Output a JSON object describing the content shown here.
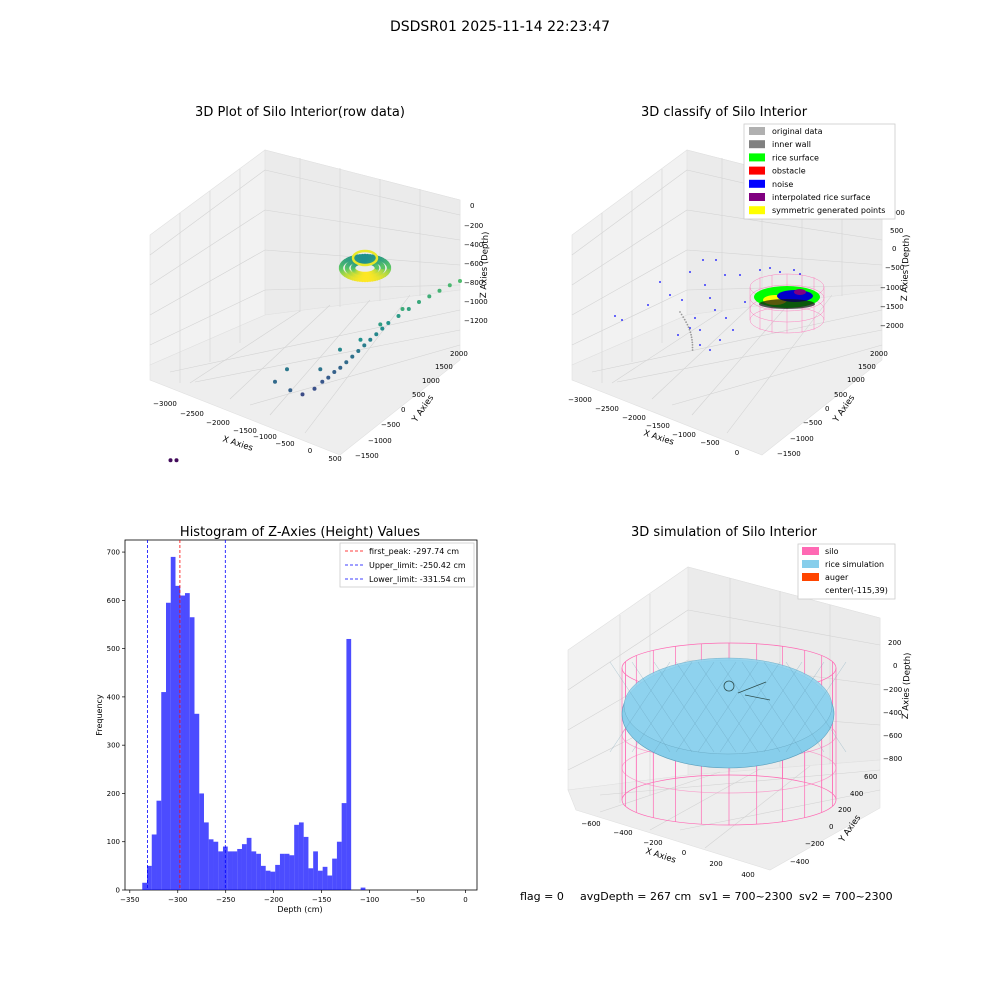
{
  "figure": {
    "suptitle": "DSDSR01 2025-11-14 22:23:47",
    "footer": {
      "flag": "flag = 0",
      "avg_depth": "avgDepth = 267 cm",
      "sv1": "sv1 = 700~2300",
      "sv2": "sv2 = 700~2300"
    }
  },
  "chart_data": [
    {
      "type": "scatter",
      "title": "3D Plot of Silo Interior(row data)",
      "xlabel": "X Axies",
      "ylabel": "Y Axies",
      "zlabel": "Z Axies (Depth)",
      "x_ticks": [
        "−3000",
        "−2500",
        "−2000",
        "−1500",
        "−1000",
        "−500",
        "0",
        "500"
      ],
      "y_ticks": [
        "−1500",
        "−1000",
        "−500",
        "0",
        "500",
        "1000",
        "1500",
        "2000"
      ],
      "z_ticks": [
        "0",
        "−200",
        "−400",
        "−600",
        "−800",
        "−1000",
        "−1200"
      ],
      "colormap": "viridis",
      "points": [
        {
          "x": -3000,
          "y": -1400,
          "z": -1450
        },
        {
          "x": -2950,
          "y": -1350,
          "z": -1460
        },
        {
          "x": -1900,
          "y": -300,
          "z": -1200
        },
        {
          "x": -1800,
          "y": -200,
          "z": -1180
        },
        {
          "x": -1750,
          "y": -100,
          "z": -1150
        },
        {
          "x": -1700,
          "y": -50,
          "z": -1130
        },
        {
          "x": -1650,
          "y": 0,
          "z": -1100
        },
        {
          "x": -1600,
          "y": 50,
          "z": -1080
        },
        {
          "x": -1550,
          "y": 100,
          "z": -1050
        },
        {
          "x": -1500,
          "y": 150,
          "z": -1020
        },
        {
          "x": -1450,
          "y": 200,
          "z": -990
        },
        {
          "x": -1400,
          "y": 250,
          "z": -960
        },
        {
          "x": -1350,
          "y": 300,
          "z": -930
        },
        {
          "x": -1300,
          "y": 350,
          "z": -900
        },
        {
          "x": -1250,
          "y": 400,
          "z": -870
        },
        {
          "x": -1200,
          "y": 450,
          "z": -840
        },
        {
          "x": -1100,
          "y": 500,
          "z": -800
        },
        {
          "x": -1000,
          "y": 550,
          "z": -760
        },
        {
          "x": -900,
          "y": 600,
          "z": -720
        },
        {
          "x": -800,
          "y": 650,
          "z": -690
        },
        {
          "x": -700,
          "y": 700,
          "z": -660
        },
        {
          "x": -600,
          "y": 750,
          "z": -630
        },
        {
          "x": -500,
          "y": 800,
          "z": -610
        },
        {
          "x": -2100,
          "y": -600,
          "z": -1050
        },
        {
          "x": -2000,
          "y": -500,
          "z": -980
        },
        {
          "x": -1900,
          "y": -650,
          "z": -1100
        },
        {
          "x": -1650,
          "y": -400,
          "z": -1000
        },
        {
          "x": -1500,
          "y": -200,
          "z": -900
        },
        {
          "x": -1300,
          "y": -100,
          "z": -850
        },
        {
          "x": -1150,
          "y": 100,
          "z": -780
        },
        {
          "x": -950,
          "y": 250,
          "z": -700
        }
      ],
      "surface_cluster": {
        "x_center": -115,
        "y_center": 39,
        "z": -267,
        "radius": 500
      }
    },
    {
      "type": "scatter",
      "title": "3D classify of Silo Interior",
      "xlabel": "X Axies",
      "ylabel": "Y Axies",
      "zlabel": "Z Axies (Depth)",
      "x_ticks": [
        "−3000",
        "−2500",
        "−2000",
        "−1500",
        "−1000",
        "−500",
        "0"
      ],
      "y_ticks": [
        "−1500",
        "−1000",
        "−500",
        "0",
        "500",
        "1000",
        "1500",
        "2000"
      ],
      "z_ticks": [
        "1000",
        "500",
        "0",
        "−500",
        "−1000",
        "−1500",
        "−2000"
      ],
      "legend": [
        {
          "label": "original data",
          "color": "#b0b0b0"
        },
        {
          "label": "inner wall",
          "color": "#808080"
        },
        {
          "label": "rice surface",
          "color": "#00ff00"
        },
        {
          "label": "obstacle",
          "color": "#ff0000"
        },
        {
          "label": "noise",
          "color": "#0000ff"
        },
        {
          "label": "interpolated rice surface",
          "color": "#800080"
        },
        {
          "label": "symmetric generated points",
          "color": "#ffff00"
        }
      ],
      "legend_position": "top-right"
    },
    {
      "type": "bar",
      "title": "Histogram of Z-Axies (Height) Values",
      "xlabel": "Depth (cm)",
      "ylabel": "Frequency",
      "xlim": [
        -355,
        12
      ],
      "ylim": [
        0,
        725
      ],
      "x_ticks": [
        -350,
        -300,
        -250,
        -200,
        -150,
        -100,
        -50,
        0
      ],
      "y_ticks": [
        0,
        100,
        200,
        300,
        400,
        500,
        600,
        700
      ],
      "bar_color": "#0000ff",
      "bin_width": 5,
      "bin_start": -337,
      "values": [
        15,
        50,
        115,
        185,
        410,
        595,
        690,
        630,
        610,
        615,
        565,
        365,
        200,
        140,
        105,
        100,
        80,
        90,
        80,
        80,
        85,
        95,
        108,
        80,
        75,
        50,
        40,
        38,
        52,
        75,
        75,
        72,
        135,
        140,
        110,
        45,
        80,
        40,
        48,
        30,
        65,
        100,
        180,
        520,
        0,
        0,
        5
      ],
      "vlines": [
        {
          "label": "first_peak: -297.74 cm",
          "x": -297.74,
          "color": "#ff0000"
        },
        {
          "label": "Upper_limit: -250.42 cm",
          "x": -250.42,
          "color": "#0000ff"
        },
        {
          "label": "Lower_limit: -331.54 cm",
          "x": -331.54,
          "color": "#0000ff"
        }
      ],
      "legend_position": "top-right"
    },
    {
      "type": "surface",
      "title": "3D simulation of Silo Interior",
      "xlabel": "X Axies",
      "ylabel": "Y Axies",
      "zlabel": "Z Axies (Depth)",
      "x_ticks": [
        "−600",
        "−400",
        "−200",
        "0",
        "200",
        "400"
      ],
      "y_ticks": [
        "−400",
        "−200",
        "0",
        "200",
        "400",
        "600"
      ],
      "z_ticks": [
        "200",
        "0",
        "−200",
        "−400",
        "−600",
        "−800"
      ],
      "legend": [
        {
          "label": "silo",
          "color": "#ff69b4"
        },
        {
          "label": "rice simulation",
          "color": "#87ceeb"
        },
        {
          "label": "auger",
          "color": "#ff4500"
        },
        {
          "label": "center(-115,39)",
          "color": ""
        }
      ],
      "legend_position": "top-right"
    }
  ]
}
